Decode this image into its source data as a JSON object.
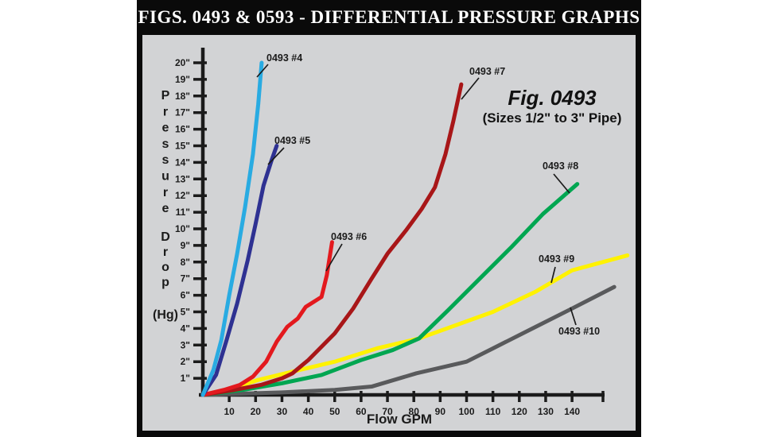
{
  "header": {
    "title": "FIGS. 0493 & 0593 - DIFFERENTIAL PRESSURE GRAPHS"
  },
  "figure": {
    "name": "Fig. 0493",
    "subtitle": "(Sizes 1/2\" to 3\" Pipe)"
  },
  "chart_data": {
    "type": "line",
    "title": "Fig. 0493 (Sizes 1/2\" to 3\" Pipe)",
    "xlabel": "Flow GPM",
    "ylabel": "Pressure Drop (Hg)",
    "ylabel_lines": [
      "Pressure",
      "Drop"
    ],
    "ylabel_unit": "(Hg)",
    "xlim": [
      0,
      152
    ],
    "ylim": [
      0,
      21
    ],
    "grid": false,
    "legend_position": "inline-annotations",
    "x_ticks": [
      10,
      20,
      30,
      40,
      50,
      60,
      70,
      80,
      90,
      100,
      110,
      120,
      130,
      140
    ],
    "y_ticks": [
      1,
      2,
      3,
      4,
      5,
      6,
      7,
      8,
      9,
      10,
      11,
      12,
      13,
      14,
      15,
      16,
      17,
      18,
      19,
      20
    ],
    "y_tick_suffix": "\"",
    "axis_color": "#1b1b1b",
    "background": "#d2d3d5",
    "series": [
      {
        "name": "0493 #4",
        "color": "#29abe2",
        "points": [
          [
            0,
            0
          ],
          [
            4,
            1.5
          ],
          [
            7,
            3.3
          ],
          [
            10,
            6
          ],
          [
            13,
            8.5
          ],
          [
            16,
            11.3
          ],
          [
            19,
            14.5
          ],
          [
            21,
            17.5
          ],
          [
            22.3,
            20
          ]
        ]
      },
      {
        "name": "0493 #5",
        "color": "#2e3192",
        "points": [
          [
            0,
            0
          ],
          [
            5,
            1.2
          ],
          [
            9,
            3.3
          ],
          [
            13,
            5.5
          ],
          [
            17,
            8.1
          ],
          [
            20,
            10.3
          ],
          [
            23,
            12.6
          ],
          [
            26,
            14.1
          ],
          [
            28,
            15
          ]
        ]
      },
      {
        "name": "0493 #6",
        "color": "#e3191e",
        "points": [
          [
            0,
            0
          ],
          [
            8,
            0.3
          ],
          [
            14,
            0.6
          ],
          [
            19,
            1.1
          ],
          [
            24,
            2
          ],
          [
            28,
            3.2
          ],
          [
            32,
            4.1
          ],
          [
            36,
            4.6
          ],
          [
            39,
            5.3
          ],
          [
            42,
            5.6
          ],
          [
            45,
            5.9
          ],
          [
            47,
            7.2
          ],
          [
            49,
            9.2
          ]
        ]
      },
      {
        "name": "0493 #7",
        "color": "#a81618",
        "points": [
          [
            0,
            0
          ],
          [
            12,
            0.3
          ],
          [
            22,
            0.6
          ],
          [
            30,
            1
          ],
          [
            34,
            1.3
          ],
          [
            40,
            2.1
          ],
          [
            50,
            3.7
          ],
          [
            57,
            5.2
          ],
          [
            64,
            7
          ],
          [
            70,
            8.5
          ],
          [
            77,
            9.9
          ],
          [
            83,
            11.2
          ],
          [
            88,
            12.5
          ],
          [
            92,
            14.5
          ],
          [
            95,
            16.5
          ],
          [
            98,
            18.7
          ]
        ]
      },
      {
        "name": "0493 #8",
        "color": "#00a651",
        "points": [
          [
            0,
            0
          ],
          [
            15,
            0.3
          ],
          [
            30,
            0.7
          ],
          [
            45,
            1.2
          ],
          [
            60,
            2.1
          ],
          [
            72,
            2.7
          ],
          [
            82,
            3.4
          ],
          [
            93,
            5.1
          ],
          [
            105,
            7
          ],
          [
            117,
            8.9
          ],
          [
            129,
            10.9
          ],
          [
            142,
            12.7
          ]
        ]
      },
      {
        "name": "0493 #9",
        "color": "#fff200",
        "points": [
          [
            0,
            0
          ],
          [
            11,
            0.4
          ],
          [
            21,
            0.9
          ],
          [
            34,
            1.4
          ],
          [
            50,
            2
          ],
          [
            66,
            2.8
          ],
          [
            82,
            3.4
          ],
          [
            110,
            5
          ],
          [
            126,
            6.2
          ],
          [
            140,
            7.5
          ],
          [
            161,
            8.4
          ]
        ]
      },
      {
        "name": "0493 #10",
        "color": "#595a5c",
        "points": [
          [
            0,
            0
          ],
          [
            30,
            0.15
          ],
          [
            50,
            0.3
          ],
          [
            64,
            0.5
          ],
          [
            81,
            1.3
          ],
          [
            100,
            2
          ],
          [
            110,
            2.8
          ],
          [
            125,
            4
          ],
          [
            140,
            5.2
          ],
          [
            156,
            6.5
          ]
        ]
      }
    ]
  }
}
